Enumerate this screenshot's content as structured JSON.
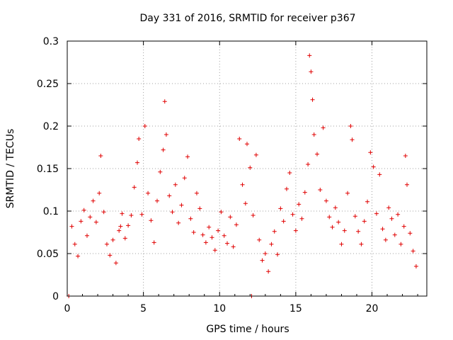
{
  "chart_data": {
    "type": "scatter",
    "title": "Day 331 of 2016, SRMTID for receiver p367",
    "xlabel": "GPS time / hours",
    "ylabel": "SRMTID / TECUs",
    "xlim": [
      0,
      23.6
    ],
    "ylim": [
      0,
      0.3
    ],
    "grid": true,
    "xticks": [
      0,
      5,
      10,
      15,
      20
    ],
    "yticks": [
      0,
      0.05,
      0.1,
      0.15,
      0.2,
      0.25,
      0.3
    ],
    "ytick_labels": [
      "0",
      "0.05",
      "0.1",
      "0.15",
      "0.2",
      "0.25",
      "0.3"
    ],
    "marker": "+",
    "color": "#e00000",
    "series": [
      {
        "name": "SRMTID",
        "points": [
          [
            0.1,
            0.0
          ],
          [
            0.3,
            0.082
          ],
          [
            0.5,
            0.061
          ],
          [
            0.7,
            0.047
          ],
          [
            0.9,
            0.088
          ],
          [
            1.1,
            0.101
          ],
          [
            1.3,
            0.071
          ],
          [
            1.5,
            0.093
          ],
          [
            1.7,
            0.112
          ],
          [
            1.9,
            0.087
          ],
          [
            2.1,
            0.121
          ],
          [
            2.2,
            0.165
          ],
          [
            2.4,
            0.099
          ],
          [
            2.6,
            0.061
          ],
          [
            2.8,
            0.048
          ],
          [
            3.0,
            0.066
          ],
          [
            3.2,
            0.039
          ],
          [
            3.4,
            0.077
          ],
          [
            3.5,
            0.082
          ],
          [
            3.6,
            0.097
          ],
          [
            3.8,
            0.068
          ],
          [
            4.0,
            0.083
          ],
          [
            4.2,
            0.095
          ],
          [
            4.4,
            0.128
          ],
          [
            4.6,
            0.157
          ],
          [
            4.7,
            0.185
          ],
          [
            4.9,
            0.096
          ],
          [
            5.1,
            0.2
          ],
          [
            5.3,
            0.121
          ],
          [
            5.5,
            0.089
          ],
          [
            5.7,
            0.063
          ],
          [
            5.9,
            0.112
          ],
          [
            6.1,
            0.146
          ],
          [
            6.3,
            0.172
          ],
          [
            6.4,
            0.229
          ],
          [
            6.5,
            0.19
          ],
          [
            6.7,
            0.118
          ],
          [
            6.9,
            0.099
          ],
          [
            7.1,
            0.131
          ],
          [
            7.3,
            0.086
          ],
          [
            7.5,
            0.107
          ],
          [
            7.7,
            0.139
          ],
          [
            7.9,
            0.164
          ],
          [
            8.1,
            0.091
          ],
          [
            8.3,
            0.075
          ],
          [
            8.5,
            0.121
          ],
          [
            8.7,
            0.103
          ],
          [
            8.9,
            0.072
          ],
          [
            9.1,
            0.063
          ],
          [
            9.3,
            0.081
          ],
          [
            9.5,
            0.069
          ],
          [
            9.7,
            0.054
          ],
          [
            9.9,
            0.077
          ],
          [
            10.1,
            0.099
          ],
          [
            10.3,
            0.071
          ],
          [
            10.5,
            0.062
          ],
          [
            10.7,
            0.093
          ],
          [
            10.9,
            0.058
          ],
          [
            11.1,
            0.084
          ],
          [
            11.3,
            0.185
          ],
          [
            11.5,
            0.131
          ],
          [
            11.7,
            0.109
          ],
          [
            11.8,
            0.179
          ],
          [
            12.0,
            0.151
          ],
          [
            12.1,
            0.0
          ],
          [
            12.2,
            0.095
          ],
          [
            12.4,
            0.166
          ],
          [
            12.6,
            0.066
          ],
          [
            12.8,
            0.042
          ],
          [
            13.0,
            0.05
          ],
          [
            13.2,
            0.029
          ],
          [
            13.4,
            0.061
          ],
          [
            13.6,
            0.076
          ],
          [
            13.8,
            0.049
          ],
          [
            14.0,
            0.103
          ],
          [
            14.2,
            0.088
          ],
          [
            14.4,
            0.126
          ],
          [
            14.6,
            0.145
          ],
          [
            14.8,
            0.096
          ],
          [
            15.0,
            0.077
          ],
          [
            15.2,
            0.108
          ],
          [
            15.4,
            0.091
          ],
          [
            15.6,
            0.122
          ],
          [
            15.8,
            0.155
          ],
          [
            15.9,
            0.283
          ],
          [
            16.0,
            0.264
          ],
          [
            16.1,
            0.231
          ],
          [
            16.2,
            0.19
          ],
          [
            16.4,
            0.167
          ],
          [
            16.6,
            0.125
          ],
          [
            16.8,
            0.198
          ],
          [
            17.0,
            0.112
          ],
          [
            17.2,
            0.093
          ],
          [
            17.4,
            0.081
          ],
          [
            17.6,
            0.104
          ],
          [
            17.8,
            0.087
          ],
          [
            18.0,
            0.061
          ],
          [
            18.2,
            0.077
          ],
          [
            18.4,
            0.121
          ],
          [
            18.6,
            0.2
          ],
          [
            18.7,
            0.184
          ],
          [
            18.9,
            0.094
          ],
          [
            19.1,
            0.076
          ],
          [
            19.3,
            0.061
          ],
          [
            19.5,
            0.088
          ],
          [
            19.7,
            0.111
          ],
          [
            19.9,
            0.169
          ],
          [
            20.1,
            0.152
          ],
          [
            20.3,
            0.097
          ],
          [
            20.5,
            0.143
          ],
          [
            20.7,
            0.079
          ],
          [
            20.9,
            0.066
          ],
          [
            21.1,
            0.104
          ],
          [
            21.3,
            0.091
          ],
          [
            21.5,
            0.072
          ],
          [
            21.7,
            0.096
          ],
          [
            21.9,
            0.061
          ],
          [
            22.1,
            0.082
          ],
          [
            22.2,
            0.165
          ],
          [
            22.3,
            0.131
          ],
          [
            22.5,
            0.074
          ],
          [
            22.7,
            0.053
          ],
          [
            22.9,
            0.035
          ]
        ]
      }
    ]
  }
}
